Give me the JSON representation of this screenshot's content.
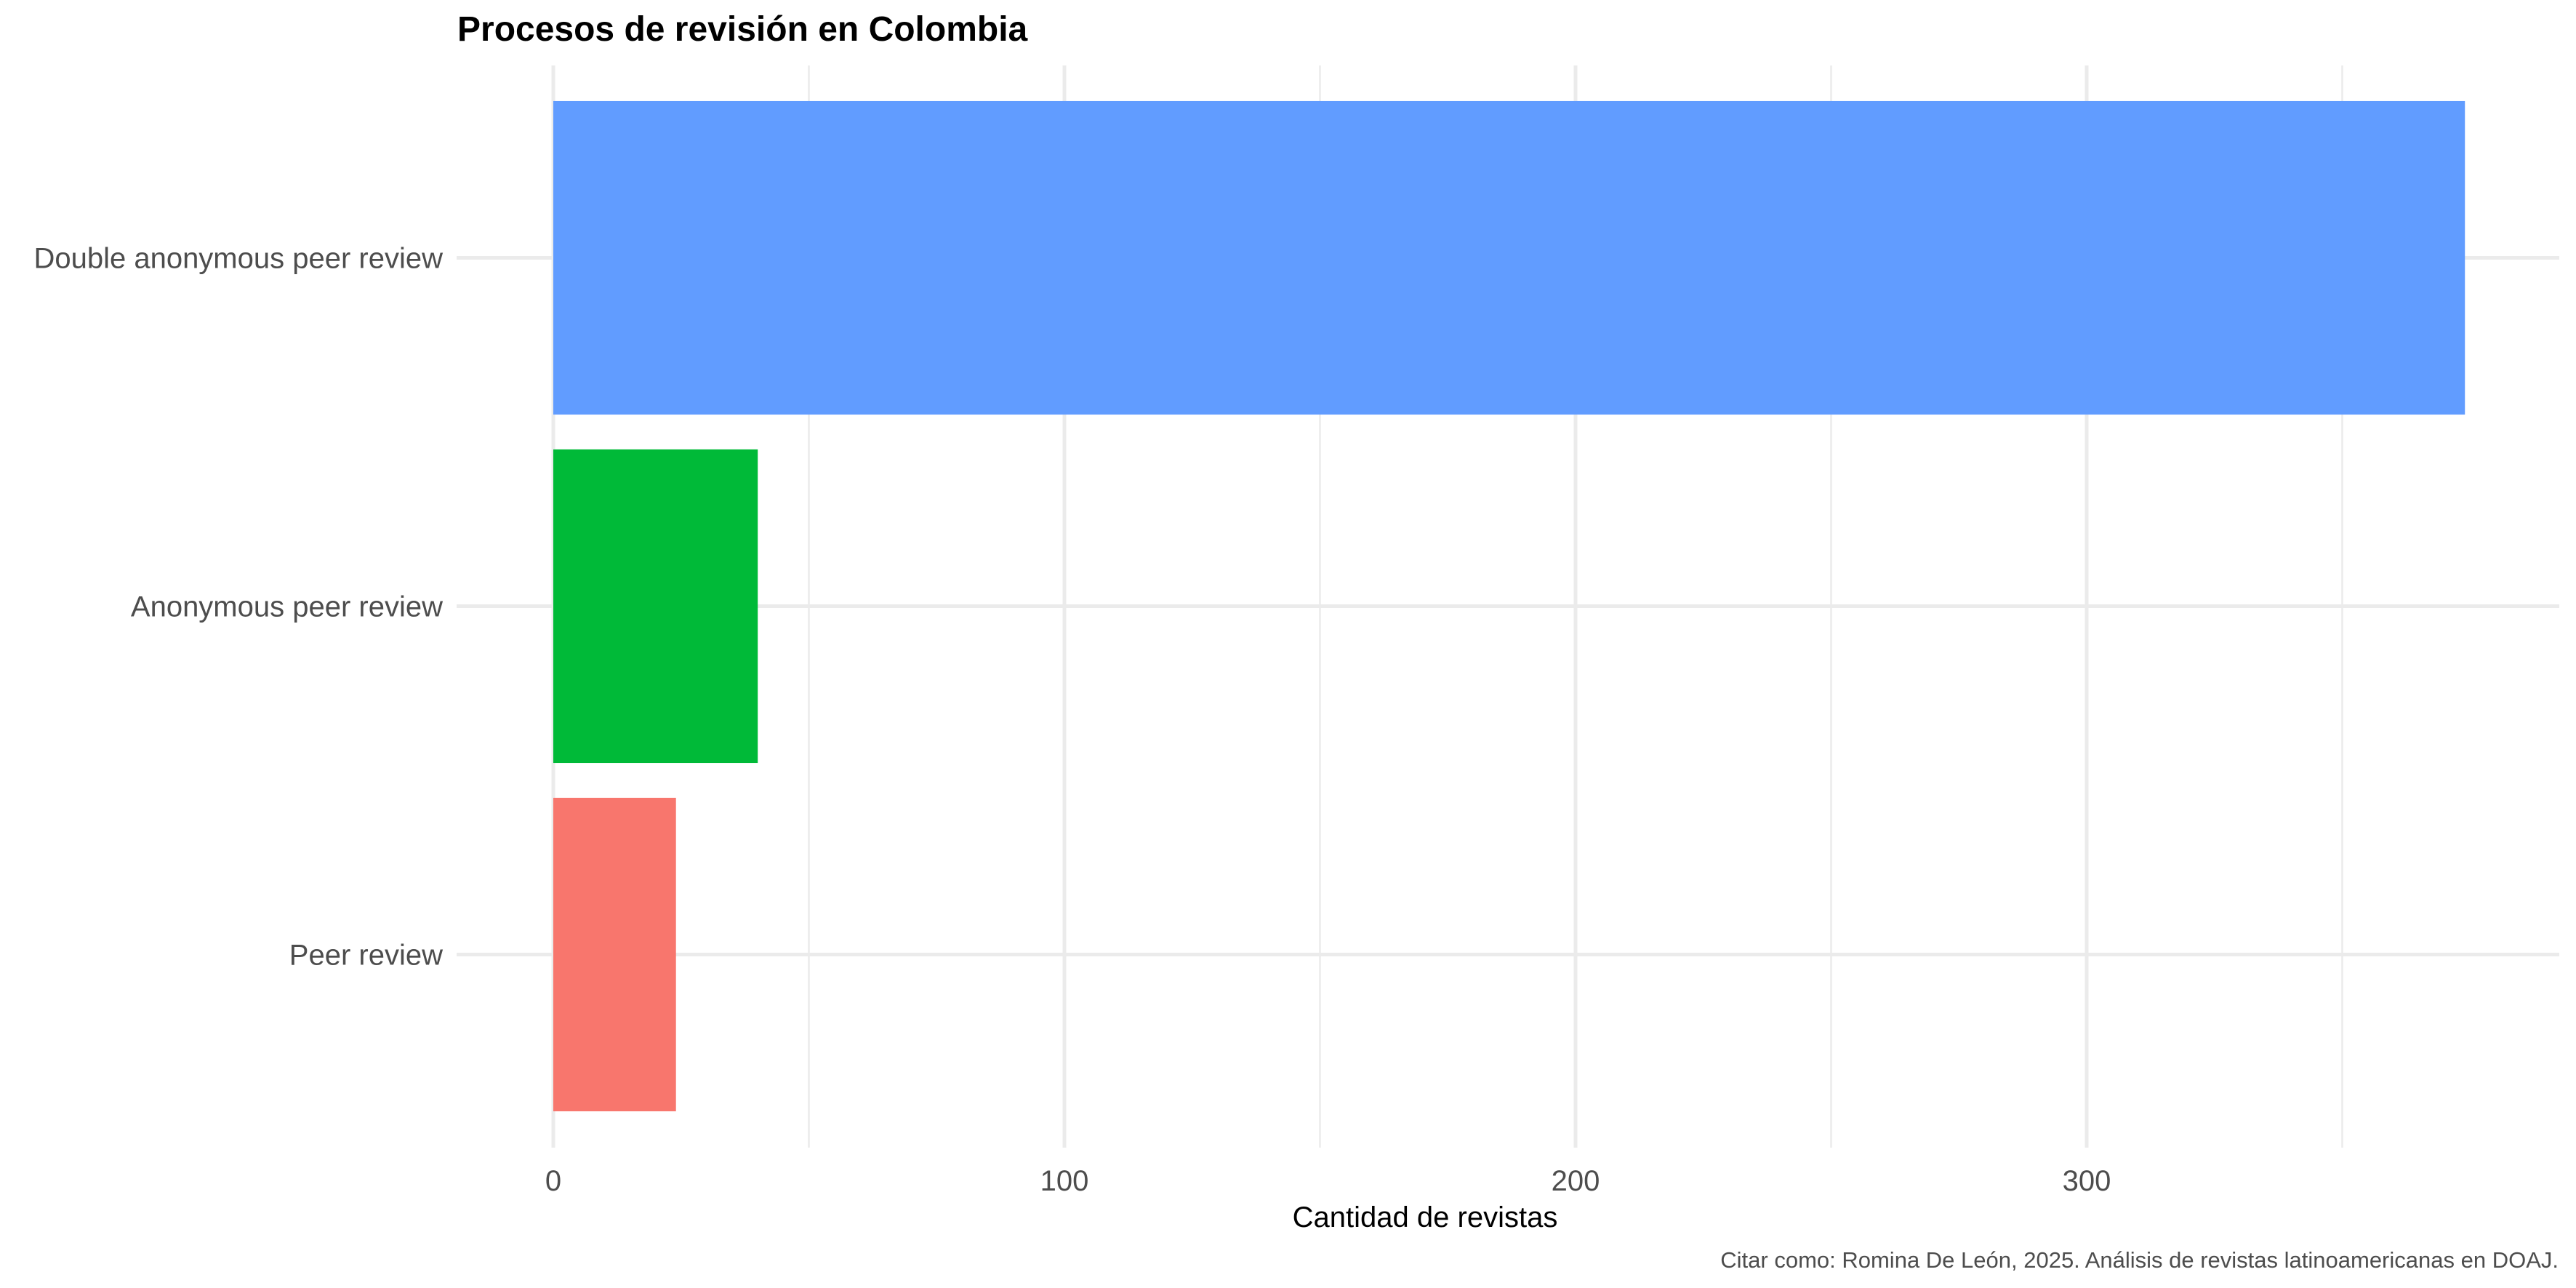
{
  "chart_data": {
    "type": "bar",
    "orientation": "horizontal",
    "title": "Procesos de revisión en Colombia",
    "xlabel": "Cantidad de revistas",
    "ylabel": "",
    "caption": "Citar como: Romina De León, 2025. Análisis de revistas latinoamericanas en DOAJ.",
    "categories": [
      "Double anonymous peer review",
      "Anonymous peer review",
      "Peer review"
    ],
    "values": [
      374,
      40,
      24
    ],
    "colors": [
      "#619CFF",
      "#00BA38",
      "#F8766D"
    ],
    "xlim": [
      0,
      390
    ],
    "x_ticks": [
      0,
      100,
      200,
      300
    ],
    "x_tick_labels": [
      "0",
      "100",
      "200",
      "300"
    ],
    "grid": true,
    "legend": "none"
  }
}
